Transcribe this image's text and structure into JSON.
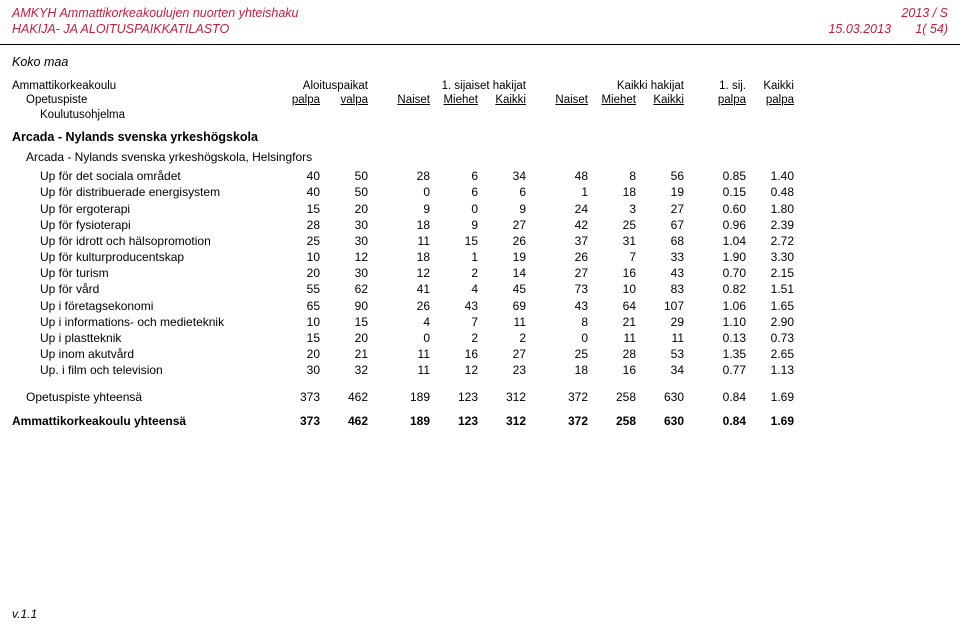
{
  "header": {
    "title_line1": "AMKYH Ammattikorkeakoulujen nuorten yhteishaku",
    "title_line2": "HAKIJA- JA ALOITUSPAIKKATILASTO",
    "period": "2013 / S",
    "date": "15.03.2013",
    "page": "1( 54)"
  },
  "section_label": "Koko maa",
  "col_labels": {
    "left1": "Ammattikorkeakoulu",
    "left2": "Opetuspiste",
    "left3": "Koulutusohjelma",
    "group1_top": "Aloituspaikat",
    "g1a": "palpa",
    "g1b": "valpa",
    "group2_top": "1. sijaiset hakijat",
    "g2a": "Naiset",
    "g2b": "Miehet",
    "g2c": "Kaikki",
    "group3_top": "Kaikki hakijat",
    "g3a": "Naiset",
    "g3b": "Miehet",
    "g3c": "Kaikki",
    "g4a_top": "1. sij.",
    "g4a": "palpa",
    "g4b_top": "Kaikki",
    "g4b": "palpa"
  },
  "school": "Arcada - Nylands svenska yrkeshögskola",
  "campus": "Arcada - Nylands svenska yrkeshögskola, Helsingfors",
  "rows": [
    {
      "label": "Up för det sociala området",
      "v": [
        "40",
        "50",
        "28",
        "6",
        "34",
        "48",
        "8",
        "56",
        "0.85",
        "1.40"
      ]
    },
    {
      "label": "Up för distribuerade energisystem",
      "v": [
        "40",
        "50",
        "0",
        "6",
        "6",
        "1",
        "18",
        "19",
        "0.15",
        "0.48"
      ]
    },
    {
      "label": "Up för ergoterapi",
      "v": [
        "15",
        "20",
        "9",
        "0",
        "9",
        "24",
        "3",
        "27",
        "0.60",
        "1.80"
      ]
    },
    {
      "label": "Up för fysioterapi",
      "v": [
        "28",
        "30",
        "18",
        "9",
        "27",
        "42",
        "25",
        "67",
        "0.96",
        "2.39"
      ]
    },
    {
      "label": "Up för idrott och hälsopromotion",
      "v": [
        "25",
        "30",
        "11",
        "15",
        "26",
        "37",
        "31",
        "68",
        "1.04",
        "2.72"
      ]
    },
    {
      "label": "Up för kulturproducentskap",
      "v": [
        "10",
        "12",
        "18",
        "1",
        "19",
        "26",
        "7",
        "33",
        "1.90",
        "3.30"
      ]
    },
    {
      "label": "Up för turism",
      "v": [
        "20",
        "30",
        "12",
        "2",
        "14",
        "27",
        "16",
        "43",
        "0.70",
        "2.15"
      ]
    },
    {
      "label": "Up för vård",
      "v": [
        "55",
        "62",
        "41",
        "4",
        "45",
        "73",
        "10",
        "83",
        "0.82",
        "1.51"
      ]
    },
    {
      "label": "Up i företagsekonomi",
      "v": [
        "65",
        "90",
        "26",
        "43",
        "69",
        "43",
        "64",
        "107",
        "1.06",
        "1.65"
      ]
    },
    {
      "label": "Up i informations- och medieteknik",
      "v": [
        "10",
        "15",
        "4",
        "7",
        "11",
        "8",
        "21",
        "29",
        "1.10",
        "2.90"
      ]
    },
    {
      "label": "Up i plastteknik",
      "v": [
        "15",
        "20",
        "0",
        "2",
        "2",
        "0",
        "11",
        "11",
        "0.13",
        "0.73"
      ]
    },
    {
      "label": "Up inom akutvård",
      "v": [
        "20",
        "21",
        "11",
        "16",
        "27",
        "25",
        "28",
        "53",
        "1.35",
        "2.65"
      ]
    },
    {
      "label": "Up. i film och television",
      "v": [
        "30",
        "32",
        "11",
        "12",
        "23",
        "18",
        "16",
        "34",
        "0.77",
        "1.13"
      ]
    }
  ],
  "summary": {
    "label": "Opetuspiste yhteensä",
    "v": [
      "373",
      "462",
      "189",
      "123",
      "312",
      "372",
      "258",
      "630",
      "0.84",
      "1.69"
    ]
  },
  "grand": {
    "label": "Ammattikorkeakoulu yhteensä",
    "v": [
      "373",
      "462",
      "189",
      "123",
      "312",
      "372",
      "258",
      "630",
      "0.84",
      "1.69"
    ]
  },
  "footer": "v.1.1"
}
